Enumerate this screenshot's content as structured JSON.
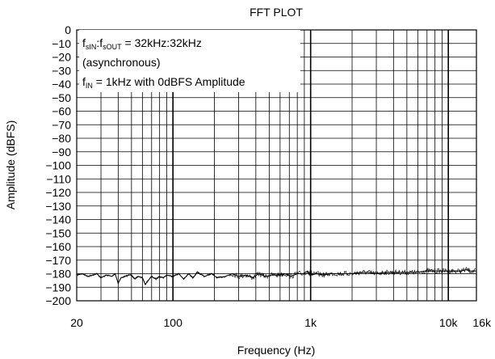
{
  "chart_data": {
    "type": "line",
    "title": "FFT PLOT",
    "xlabel": "Frequency (Hz)",
    "ylabel": "Amplitude (dBFS)",
    "x_scale": "log",
    "xlim": [
      20,
      16000
    ],
    "ylim": [
      -200,
      0
    ],
    "x_ticks": [
      {
        "value": 20,
        "label": "20"
      },
      {
        "value": 100,
        "label": "100"
      },
      {
        "value": 1000,
        "label": "1k"
      },
      {
        "value": 10000,
        "label": "10k"
      },
      {
        "value": 16000,
        "label": "16k"
      }
    ],
    "y_ticks": [
      0,
      -10,
      -20,
      -30,
      -40,
      -50,
      -60,
      -70,
      -80,
      -90,
      -100,
      -110,
      -120,
      -130,
      -140,
      -150,
      -160,
      -170,
      -180,
      -190,
      -200
    ],
    "y_tick_labels": [
      "0",
      "−10",
      "−20",
      "−30",
      "−40",
      "−50",
      "−60",
      "−70",
      "−80",
      "−90",
      "−100",
      "−110",
      "−120",
      "−130",
      "−140",
      "−150",
      "−160",
      "−170",
      "−180",
      "−190",
      "−200"
    ],
    "grid": true,
    "annotation": {
      "line1_f": "f",
      "line1_sub1": "sIN",
      "line1_colon": ":f",
      "line1_sub2": "sOUT",
      "line1_rest": " = 32kHz:32kHz",
      "line2": "(asynchronous)",
      "line3_f": "f",
      "line3_sub": "IN",
      "line3_rest": " = 1kHz with 0dBFS Amplitude"
    },
    "series": [
      {
        "color": "#000000",
        "x": [
          20,
          22,
          24,
          26,
          28,
          30,
          33,
          36,
          38,
          40,
          42,
          45,
          48,
          50,
          53,
          56,
          60,
          63,
          66,
          70,
          75,
          80,
          85,
          90,
          100,
          110,
          120,
          130,
          140,
          150,
          170,
          190,
          210,
          240,
          270,
          300,
          340,
          380,
          420,
          470,
          520,
          580,
          650,
          720,
          800,
          880,
          950,
          980,
          1000,
          1020,
          1100,
          1250,
          1400,
          1600,
          1800,
          2000,
          2300,
          2600,
          3000,
          3400,
          3800,
          4300,
          4800,
          5400,
          6000,
          6800,
          7600,
          8500,
          9500,
          10500,
          11500,
          12500,
          13500,
          14500,
          15200,
          16000
        ],
        "values": [
          -181,
          -180,
          -182,
          -181,
          -180,
          -183,
          -181,
          -182,
          -180,
          -187,
          -183,
          -182,
          -181,
          -181,
          -184,
          -182,
          -183,
          -188,
          -185,
          -182,
          -184,
          -182,
          -183,
          -181,
          -182,
          -180,
          -184,
          -180,
          -183,
          -179,
          -182,
          -180,
          -183,
          -182,
          -180,
          -182,
          -181,
          -183,
          -180,
          -182,
          -181,
          -181,
          -180,
          -182,
          -180,
          -180,
          -178,
          -181,
          -176,
          -181,
          -180,
          -181,
          -180,
          -180,
          -180,
          -180,
          -179,
          -179,
          -180,
          -179,
          -179,
          -179,
          -179,
          -179,
          -179,
          -178,
          -178,
          -178,
          -178,
          -178,
          -178,
          -178,
          -177,
          -178,
          -178,
          -178
        ]
      }
    ]
  }
}
